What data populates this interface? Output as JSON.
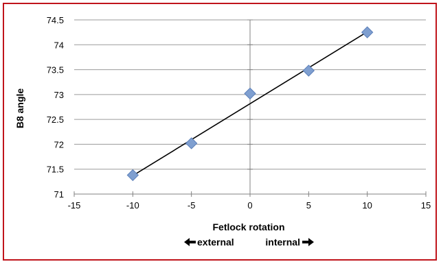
{
  "chart_data": {
    "type": "scatter",
    "xlabel": "Fetlock rotation",
    "ylabel": "B8 angle",
    "xlim": [
      -15,
      15
    ],
    "ylim": [
      71,
      74.5
    ],
    "x_ticks": [
      -15,
      -10,
      -5,
      0,
      5,
      10,
      15
    ],
    "y_ticks": [
      71,
      71.5,
      72,
      72.5,
      73,
      73.5,
      74,
      74.5
    ],
    "x_tick_labels": [
      "-15",
      "-10",
      "-5",
      "0",
      "5",
      "10",
      "15"
    ],
    "y_tick_labels": [
      "71",
      "71.5",
      "72",
      "72.5",
      "73",
      "73.5",
      "74",
      "74.5"
    ],
    "grid": "horizontal",
    "series": [
      {
        "x": [
          -10,
          -5,
          0,
          5,
          10
        ],
        "y": [
          71.38,
          72.02,
          73.02,
          73.48,
          74.25
        ],
        "marker": "diamond",
        "color": "#7f9fd0"
      }
    ],
    "trendline": {
      "x": [
        -10,
        10
      ],
      "y": [
        71.37,
        74.26
      ],
      "color": "#000000"
    },
    "annotations": {
      "left": "external",
      "right": "internal"
    }
  }
}
